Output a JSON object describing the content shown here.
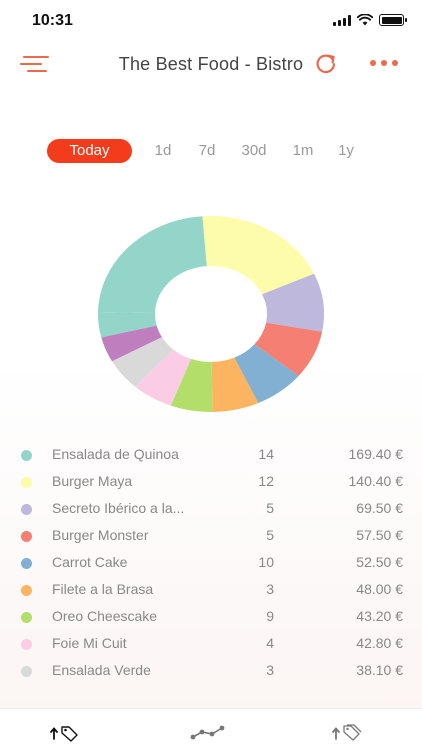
{
  "status_bar": {
    "time": "10:31"
  },
  "header": {
    "title": "The Best Food - Bistro"
  },
  "range_tabs": [
    "Today",
    "1d",
    "7d",
    "30d",
    "1m",
    "1y"
  ],
  "chart_data": {
    "type": "pie",
    "style": "donut",
    "categories": [
      "Ensalada de Quinoa",
      "Burger Maya",
      "Secreto Ibérico a la...",
      "Burger Monster",
      "Carrot Cake",
      "Filete a la Brasa",
      "Oreo Cheescake",
      "Foie Mi Cuit",
      "Ensalada Verde",
      "",
      ""
    ],
    "values": [
      169.4,
      140.4,
      69.5,
      57.5,
      52.5,
      48.0,
      43.2,
      42.8,
      38.1,
      30.0,
      30.0
    ],
    "colors": [
      "#93d6c9",
      "#fcfcaa",
      "#bdb8dc",
      "#f47f72",
      "#82b0d3",
      "#fdb460",
      "#b3de69",
      "#fbcde5",
      "#d9d9d9",
      "#bf7fbf",
      "#93d6c9"
    ]
  },
  "legend": [
    {
      "color": "#93d6c9",
      "name": "Ensalada de Quinoa",
      "qty": "14",
      "amount": "169.40 €"
    },
    {
      "color": "#fcfcaa",
      "name": "Burger Maya",
      "qty": "12",
      "amount": "140.40 €"
    },
    {
      "color": "#bdb8dc",
      "name": "Secreto Ibérico a la...",
      "qty": "5",
      "amount": "69.50 €"
    },
    {
      "color": "#f47f72",
      "name": "Burger Monster",
      "qty": "5",
      "amount": "57.50 €"
    },
    {
      "color": "#82b0d3",
      "name": "Carrot Cake",
      "qty": "10",
      "amount": "52.50 €"
    },
    {
      "color": "#fdb460",
      "name": "Filete a la Brasa",
      "qty": "3",
      "amount": "48.00 €"
    },
    {
      "color": "#b3de69",
      "name": "Oreo Cheescake",
      "qty": "9",
      "amount": "43.20 €"
    },
    {
      "color": "#fbcde5",
      "name": "Foie Mi Cuit",
      "qty": "4",
      "amount": "42.80 €"
    },
    {
      "color": "#d9d9d9",
      "name": "Ensalada Verde",
      "qty": "3",
      "amount": "38.10 €"
    }
  ],
  "icons": {
    "menu": "menu-lines-icon",
    "refresh": "refresh-icon",
    "more": "more-dots-icon",
    "tab_sales": "up-tag-icon",
    "tab_trend": "trend-line-icon",
    "tab_multi": "up-tags-icon"
  },
  "accent_color": "#e96a4c"
}
